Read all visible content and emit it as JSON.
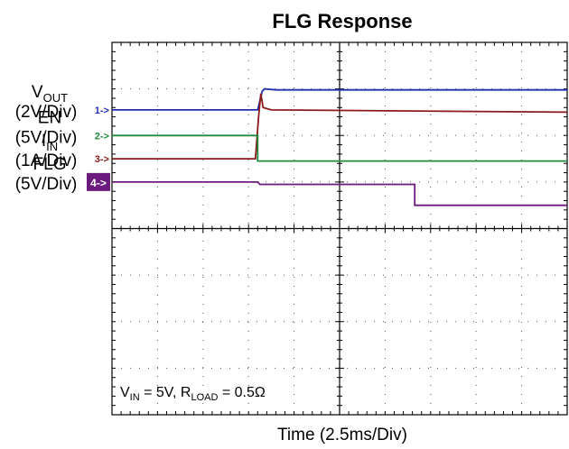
{
  "chart_data": {
    "type": "line",
    "title": "FLG Response",
    "xlabel": "Time (2.5ms/Div)",
    "x_unit_per_div": 2.5,
    "x_range_div": [
      0,
      10
    ],
    "y_range_div": [
      -4,
      4
    ],
    "grid": true,
    "annotation": {
      "main": "V",
      "sub1": "IN",
      "mid": " = 5V, R",
      "sub2": "LOAD",
      "tail": " = 0.5Ω"
    },
    "channels": [
      {
        "id": "1",
        "marker": "1->",
        "name_main": "V",
        "name_sub": "OUT",
        "scale": "(2V/Div)",
        "color": "#1f2fb0",
        "points": [
          [
            0,
            2.55
          ],
          [
            3.2,
            2.55
          ],
          [
            3.25,
            2.75
          ],
          [
            3.3,
            2.95
          ],
          [
            3.35,
            3.0
          ],
          [
            3.6,
            2.98
          ],
          [
            10,
            2.98
          ]
        ]
      },
      {
        "id": "3",
        "marker": "3->",
        "name_main": "I",
        "name_sub": "IN",
        "scale": "(1A/Div)",
        "color": "#8b1a1a",
        "points": [
          [
            0,
            1.5
          ],
          [
            3.15,
            1.5
          ],
          [
            3.22,
            2.4
          ],
          [
            3.27,
            2.9
          ],
          [
            3.32,
            2.6
          ],
          [
            3.5,
            2.55
          ],
          [
            10,
            2.5
          ]
        ]
      },
      {
        "id": "2",
        "marker": "2->",
        "name_main": "EN",
        "name_sub": "",
        "scale": "(5V/Div)",
        "color": "#1f8a3c",
        "points": [
          [
            0,
            2.0
          ],
          [
            3.2,
            2.0
          ],
          [
            3.2,
            1.45
          ],
          [
            10,
            1.45
          ]
        ]
      },
      {
        "id": "4",
        "marker": "4->",
        "name_main": "FLG",
        "name_sub": "",
        "scale": "(5V/Div)",
        "color": "#6b1b7e",
        "points": [
          [
            0,
            1.0
          ],
          [
            3.2,
            1.0
          ],
          [
            3.25,
            0.95
          ],
          [
            6.65,
            0.95
          ],
          [
            6.65,
            0.5
          ],
          [
            10,
            0.5
          ]
        ]
      }
    ]
  }
}
